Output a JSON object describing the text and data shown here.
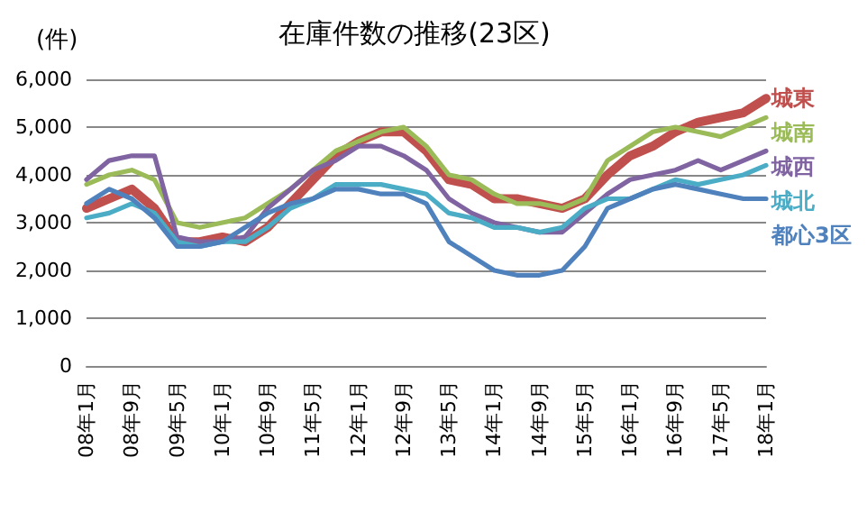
{
  "chart_data": {
    "type": "line",
    "title": "在庫件数の推移(23区)",
    "ylabel": "(件)",
    "categories": [
      "08年1月",
      null,
      "08年9月",
      null,
      "09年5月",
      null,
      "10年1月",
      null,
      "10年9月",
      null,
      "11年5月",
      null,
      "12年1月",
      null,
      "12年9月",
      null,
      "13年5月",
      null,
      "14年1月",
      null,
      "14年9月",
      null,
      "15年5月",
      null,
      "16年1月",
      null,
      "16年9月",
      null,
      "17年5月",
      null,
      "18年1月"
    ],
    "ylim": [
      0,
      6000
    ],
    "yticks": [
      0,
      {
        "value": 1000,
        "label": "1,000"
      },
      {
        "value": 2000,
        "label": "2,000"
      },
      {
        "value": 3000,
        "label": "3,000"
      },
      {
        "value": 4000,
        "label": "4,000"
      },
      {
        "value": 5000,
        "label": "5,000"
      },
      {
        "value": 6000,
        "label": "6,000"
      }
    ],
    "grid": "y",
    "marker": "none",
    "line_style": "solid",
    "legend": false,
    "series": [
      {
        "name": "城東",
        "color": "#c0504d",
        "values": [
          3300,
          3500,
          3700,
          3300,
          2600,
          2600,
          2700,
          2600,
          2900,
          3400,
          3900,
          4400,
          4700,
          4900,
          4900,
          4500,
          3900,
          3800,
          3500,
          3500,
          3400,
          3300,
          3500,
          4000,
          4400,
          4600,
          4900,
          5100,
          5200,
          5300,
          5600
        ]
      },
      {
        "name": "城南",
        "color": "#9bbb59",
        "values": [
          3800,
          4000,
          4100,
          3900,
          3000,
          2900,
          3000,
          3100,
          3400,
          3700,
          4100,
          4500,
          4700,
          4900,
          5000,
          4600,
          4000,
          3900,
          3600,
          3400,
          3400,
          3300,
          3500,
          4300,
          4600,
          4900,
          5000,
          4900,
          4800,
          5000,
          5200
        ]
      },
      {
        "name": "城西",
        "color": "#8064a2",
        "values": [
          3900,
          4300,
          4400,
          4400,
          2700,
          2600,
          2600,
          2700,
          3300,
          3700,
          4100,
          4300,
          4600,
          4600,
          4400,
          4100,
          3500,
          3200,
          3000,
          2900,
          2800,
          2800,
          3200,
          3600,
          3900,
          4000,
          4100,
          4300,
          4100,
          4300,
          4500
        ]
      },
      {
        "name": "城北",
        "color": "#4bacc6",
        "values": [
          3100,
          3200,
          3400,
          3200,
          2600,
          2500,
          2600,
          2600,
          2900,
          3300,
          3500,
          3800,
          3800,
          3800,
          3700,
          3600,
          3200,
          3100,
          2900,
          2900,
          2800,
          2900,
          3300,
          3500,
          3500,
          3700,
          3900,
          3800,
          3900,
          4000,
          4200
        ]
      },
      {
        "name": "都心3区",
        "color": "#4f81bd",
        "values": [
          3400,
          3700,
          3500,
          3100,
          2500,
          2500,
          2600,
          2900,
          3200,
          3400,
          3500,
          3700,
          3700,
          3600,
          3600,
          3400,
          2600,
          2300,
          2000,
          1900,
          1900,
          2000,
          2500,
          3300,
          3500,
          3700,
          3800,
          3700,
          3600,
          3500,
          3500
        ]
      }
    ]
  }
}
